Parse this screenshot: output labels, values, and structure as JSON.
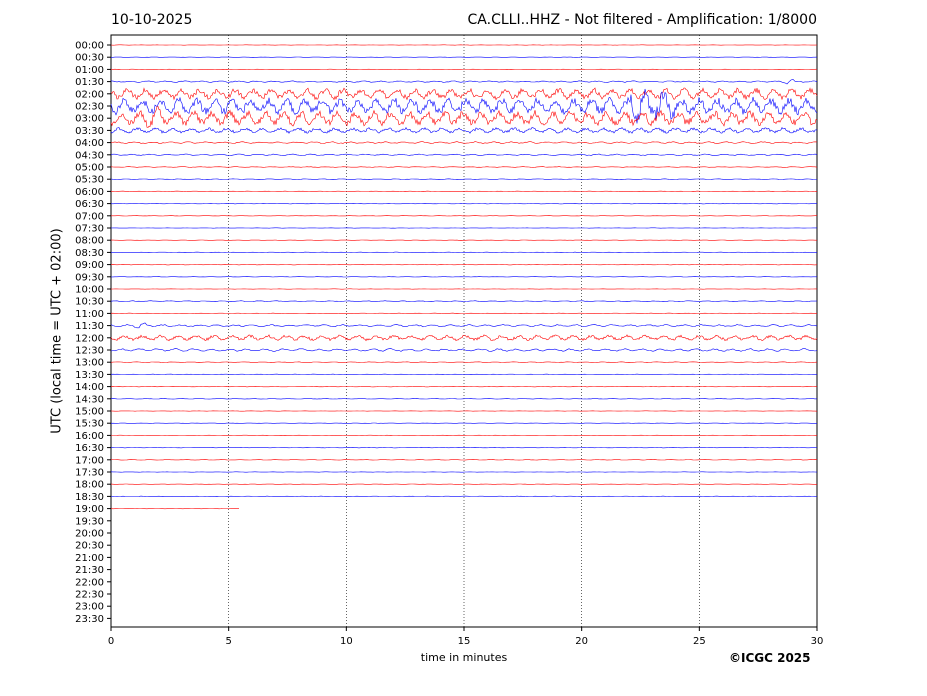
{
  "header": {
    "date": "10-10-2025",
    "title": "CA.CLLI..HHZ - Not filtered - Amplification: 1/8000"
  },
  "footer": {
    "copyright": "©ICGC 2025"
  },
  "colors": {
    "trace_a": "#ff0000",
    "trace_b": "#0000ff",
    "grid": "#000000"
  },
  "chart_data": {
    "type": "line",
    "title": "CA.CLLI..HHZ - Not filtered - Amplification: 1/8000",
    "xlabel": "time in minutes",
    "ylabel": "UTC (local time = UTC + 02:00)",
    "xlim": [
      0,
      30
    ],
    "x_ticks": [
      "0",
      "5",
      "10",
      "15",
      "20",
      "25",
      "30"
    ],
    "grid": "vertical dotted at each 5 minutes",
    "row_labels": [
      "00:00",
      "00:30",
      "01:00",
      "01:30",
      "02:00",
      "02:30",
      "03:00",
      "03:30",
      "04:00",
      "04:30",
      "05:00",
      "05:30",
      "06:00",
      "06:30",
      "07:00",
      "07:30",
      "08:00",
      "08:30",
      "09:00",
      "09:30",
      "10:00",
      "10:30",
      "11:00",
      "11:30",
      "12:00",
      "12:30",
      "13:00",
      "13:30",
      "14:00",
      "14:30",
      "15:00",
      "15:30",
      "16:00",
      "16:30",
      "17:00",
      "17:30",
      "18:00",
      "18:30",
      "19:00",
      "19:30",
      "20:00",
      "20:30",
      "21:00",
      "21:30",
      "22:00",
      "22:30",
      "23:00",
      "23:30"
    ],
    "traces": [
      {
        "row": "00:00",
        "amp": 0.2,
        "end": 30
      },
      {
        "row": "00:30",
        "amp": 0.2,
        "end": 30
      },
      {
        "row": "01:00",
        "amp": 0.2,
        "end": 30
      },
      {
        "row": "01:30",
        "amp": 0.8,
        "end": 30,
        "burst": [
          28.5,
          29,
          3
        ]
      },
      {
        "row": "02:00",
        "amp": 6,
        "end": 30
      },
      {
        "row": "02:30",
        "amp": 9,
        "end": 30,
        "burst": [
          22,
          24,
          22
        ]
      },
      {
        "row": "03:00",
        "amp": 8,
        "end": 30,
        "burst": [
          1.5,
          2.2,
          12
        ]
      },
      {
        "row": "03:30",
        "amp": 3,
        "end": 30
      },
      {
        "row": "04:00",
        "amp": 1,
        "end": 30
      },
      {
        "row": "04:30",
        "amp": 0.8,
        "end": 30
      },
      {
        "row": "05:00",
        "amp": 0.4,
        "end": 30
      },
      {
        "row": "05:30",
        "amp": 0.4,
        "end": 30
      },
      {
        "row": "06:00",
        "amp": 0.3,
        "end": 30
      },
      {
        "row": "06:30",
        "amp": 0.3,
        "end": 30
      },
      {
        "row": "07:00",
        "amp": 0.2,
        "end": 30
      },
      {
        "row": "07:30",
        "amp": 0.2,
        "end": 30
      },
      {
        "row": "08:00",
        "amp": 0.2,
        "end": 30
      },
      {
        "row": "08:30",
        "amp": 0.3,
        "end": 30
      },
      {
        "row": "09:00",
        "amp": 0.3,
        "end": 30
      },
      {
        "row": "09:30",
        "amp": 0.2,
        "end": 30
      },
      {
        "row": "10:00",
        "amp": 0.2,
        "end": 30
      },
      {
        "row": "10:30",
        "amp": 0.5,
        "end": 30
      },
      {
        "row": "11:00",
        "amp": 0.3,
        "end": 30
      },
      {
        "row": "11:30",
        "amp": 1.2,
        "end": 30,
        "burst": [
          1,
          1.5,
          3
        ]
      },
      {
        "row": "12:00",
        "amp": 3,
        "end": 30
      },
      {
        "row": "12:30",
        "amp": 1.5,
        "end": 30
      },
      {
        "row": "13:00",
        "amp": 0.4,
        "end": 30
      },
      {
        "row": "13:30",
        "amp": 0.3,
        "end": 30
      },
      {
        "row": "14:00",
        "amp": 0.3,
        "end": 30
      },
      {
        "row": "14:30",
        "amp": 0.3,
        "end": 30
      },
      {
        "row": "15:00",
        "amp": 0.2,
        "end": 30
      },
      {
        "row": "15:30",
        "amp": 0.2,
        "end": 30
      },
      {
        "row": "16:00",
        "amp": 0.2,
        "end": 30
      },
      {
        "row": "16:30",
        "amp": 0.3,
        "end": 30
      },
      {
        "row": "17:00",
        "amp": 0.3,
        "end": 30
      },
      {
        "row": "17:30",
        "amp": 0.2,
        "end": 30
      },
      {
        "row": "18:00",
        "amp": 0.2,
        "end": 30
      },
      {
        "row": "18:30",
        "amp": 0.3,
        "end": 30
      },
      {
        "row": "19:00",
        "amp": 0.2,
        "end": 5.5
      }
    ]
  }
}
